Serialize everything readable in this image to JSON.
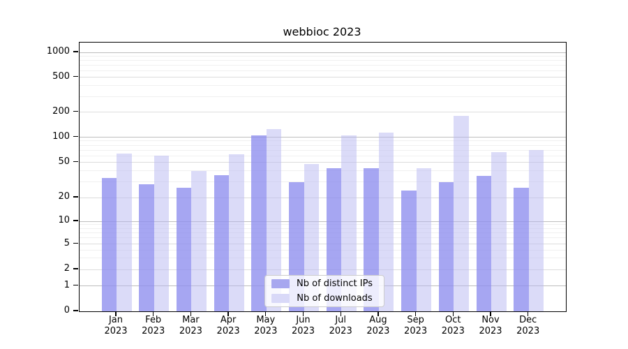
{
  "title": "webbioc 2023",
  "chart_data": {
    "type": "bar",
    "title": "webbioc 2023",
    "categories": [
      "Jan",
      "Feb",
      "Mar",
      "Apr",
      "May",
      "Jun",
      "Jul",
      "Aug",
      "Sep",
      "Oct",
      "Nov",
      "Dec"
    ],
    "year": "2023",
    "series": [
      {
        "name": "Nb of distinct IPs",
        "color": "#a7a7ef",
        "fill": "rgba(141,141,238,0.78)",
        "values": [
          33,
          28,
          26,
          36,
          105,
          30,
          43,
          43,
          24,
          30,
          35,
          26
        ]
      },
      {
        "name": "Nb of downloads",
        "color": "#d9d9f8",
        "fill": "rgba(184,184,242,0.5)",
        "values": [
          64,
          60,
          40,
          62,
          126,
          48,
          105,
          113,
          43,
          180,
          66,
          70
        ]
      }
    ],
    "y_axis": {
      "ticks": [
        0,
        1,
        2,
        5,
        10,
        20,
        50,
        100,
        200,
        500,
        1000
      ],
      "scale": "log-like",
      "major_grid_values": [
        1,
        10,
        100,
        1000
      ],
      "minor_grid_values": [
        2,
        5,
        20,
        50,
        200,
        500
      ],
      "faint_grid_values": [
        3,
        4,
        6,
        7,
        8,
        9,
        30,
        40,
        60,
        70,
        80,
        90,
        300,
        400,
        600,
        700,
        800,
        900
      ]
    },
    "grid": true,
    "legend_position": "lower center",
    "colors": {
      "major_grid": "#bdbdbd",
      "minor_grid": "#dcdcdc",
      "faint_grid": "#f0f0f0",
      "axis": "#000000",
      "legend_border": "#cccccc"
    }
  }
}
